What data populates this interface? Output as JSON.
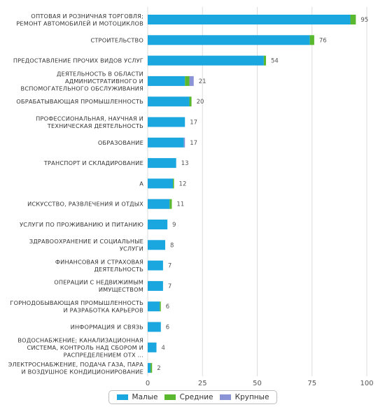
{
  "colors": {
    "small": "#1aa6de",
    "medium": "#5ab82e",
    "large": "#8a93d6",
    "grid": "#dddddd"
  },
  "chart_data": {
    "type": "bar",
    "orientation": "horizontal",
    "stacked": true,
    "categories": [
      [
        "ОПТОВАЯ И РОЗНИЧНАЯ ТОРГОВЛЯ;",
        "РЕМОНТ АВТОМОБИЛЕЙ И МОТОЦИКЛОВ"
      ],
      [
        "СТРОИТЕЛЬСТВО"
      ],
      [
        "ПРЕДОСТАВЛЕНИЕ ПРОЧИХ ВИДОВ УСЛУГ"
      ],
      [
        "ДЕЯТЕЛЬНОСТЬ В ОБЛАСТИ",
        "АДМИНИСТРАТИВНОГО И",
        "ВСПОМОГАТЕЛЬНОГО ОБСЛУЖИВАНИЯ"
      ],
      [
        "ОБРАБАТЫВАЮЩАЯ ПРОМЫШЛЕННОСТЬ"
      ],
      [
        "ПРОФЕССИОНАЛЬНАЯ, НАУЧНАЯ И",
        "ТЕХНИЧЕСКАЯ ДЕЯТЕЛЬНОСТЬ"
      ],
      [
        "ОБРАЗОВАНИЕ"
      ],
      [
        "ТРАНСПОРТ И СКЛАДИРОВАНИЕ"
      ],
      [
        "A"
      ],
      [
        "ИСКУССТВО, РАЗВЛЕЧЕНИЯ И ОТДЫХ"
      ],
      [
        "УСЛУГИ ПО ПРОЖИВАНИЮ И ПИТАНИЮ"
      ],
      [
        "ЗДРАВООХРАНЕНИЕ И СОЦИАЛЬНЫЕ",
        "УСЛУГИ"
      ],
      [
        "ФИНАНСОВАЯ И СТРАХОВАЯ",
        "ДЕЯТЕЛЬНОСТЬ"
      ],
      [
        "ОПЕРАЦИИ С НЕДВИЖИМЫМ",
        "ИМУЩЕСТВОМ"
      ],
      [
        "ГОРНОДОБЫВАЮЩАЯ ПРОМЫШЛЕННОСТЬ",
        "И РАЗРАБОТКА КАРЬЕРОВ"
      ],
      [
        "ИНФОРМАЦИЯ И СВЯЗЬ"
      ],
      [
        "ВОДОСНАБЖЕНИЕ; КАНАЛИЗАЦИОННАЯ",
        "СИСТЕМА, КОНТРОЛЬ НАД СБОРОМ И",
        "РАСПРЕДЕЛЕНИЕМ ОТХ ..."
      ],
      [
        "ЭЛЕКТРОСНАБЖЕНИЕ, ПОДАЧА ГАЗА, ПАРА",
        "И ВОЗДУШНОЕ КОНДИЦИОНИРОВАНИЕ"
      ]
    ],
    "series": [
      {
        "name": "Малые",
        "key": "small",
        "values": [
          92.5,
          74,
          53,
          17,
          19,
          17,
          16.5,
          13,
          11.5,
          10,
          9,
          8,
          7,
          7,
          5.5,
          6,
          4,
          1.3
        ]
      },
      {
        "name": "Средние",
        "key": "medium",
        "values": [
          2.5,
          2,
          1,
          2,
          1,
          0,
          0,
          0,
          0.5,
          1,
          0,
          0,
          0,
          0,
          0.5,
          0,
          0,
          0.7
        ]
      },
      {
        "name": "Крупные",
        "key": "large",
        "values": [
          0,
          0,
          0,
          2,
          0,
          0,
          0.5,
          0,
          0,
          0,
          0,
          0,
          0,
          0,
          0,
          0,
          0,
          0
        ]
      }
    ],
    "totals": [
      "95",
      "76",
      "54",
      "21",
      "20",
      "17",
      "17",
      "13",
      "12",
      "11",
      "9",
      "8",
      "7",
      "7",
      "6",
      "6",
      "4",
      "2"
    ],
    "xlim": [
      0,
      100
    ],
    "xticks": [
      "0",
      "25",
      "50",
      "75",
      "100"
    ],
    "grid": true,
    "legend_position": "bottom"
  },
  "legend": {
    "items": [
      "Малые",
      "Средние",
      "Крупные"
    ]
  }
}
